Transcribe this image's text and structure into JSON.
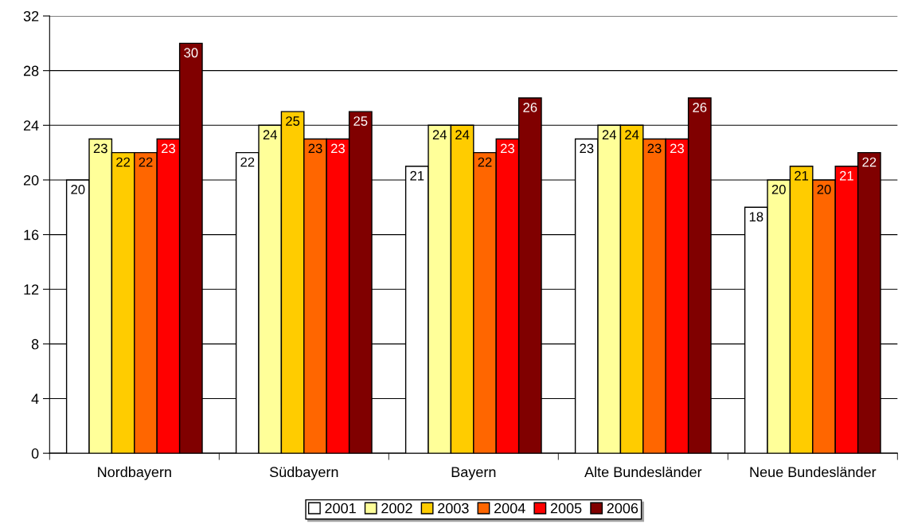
{
  "chart_data": {
    "type": "bar",
    "categories": [
      "Nordbayern",
      "Südbayern",
      "Bayern",
      "Alte Bundesländer",
      "Neue Bundesländer"
    ],
    "series": [
      {
        "name": "2001",
        "color": "#ffffff",
        "values": [
          20,
          22,
          21,
          23,
          18
        ]
      },
      {
        "name": "2002",
        "color": "#ffff99",
        "values": [
          23,
          24,
          24,
          24,
          20
        ]
      },
      {
        "name": "2003",
        "color": "#ffcc00",
        "values": [
          22,
          25,
          24,
          24,
          21
        ]
      },
      {
        "name": "2004",
        "color": "#ff6600",
        "values": [
          22,
          23,
          22,
          23,
          20
        ]
      },
      {
        "name": "2005",
        "color": "#ff0000",
        "values": [
          23,
          23,
          23,
          23,
          21
        ]
      },
      {
        "name": "2006",
        "color": "#800000",
        "values": [
          30,
          25,
          26,
          26,
          22
        ]
      }
    ],
    "ylim": [
      0,
      32
    ],
    "yticks": [
      0,
      4,
      8,
      12,
      16,
      20,
      24,
      28,
      32
    ],
    "grid": "y",
    "legend": "bottom",
    "data_labels": true
  }
}
